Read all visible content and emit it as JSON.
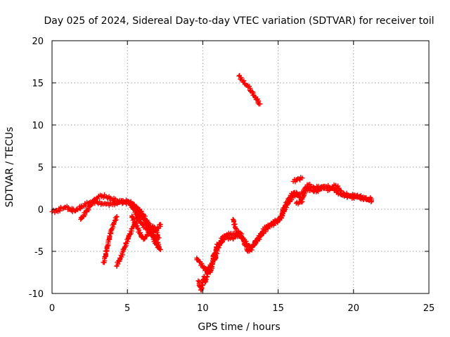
{
  "chart_data": {
    "type": "scatter",
    "title": "Day 025 of 2024, Sidereal Day-to-day VTEC variation (SDTVAR) for receiver toil",
    "xlabel": "GPS time / hours",
    "ylabel": "SDTVAR / TECUs",
    "xlim": [
      0,
      25
    ],
    "ylim": [
      -10,
      20
    ],
    "xticks": [
      0,
      5,
      10,
      15,
      20,
      25
    ],
    "yticks": [
      -10,
      -5,
      0,
      5,
      10,
      15,
      20
    ],
    "xtick_labels": [
      "0",
      "5",
      "10",
      "15",
      "20",
      "25"
    ],
    "ytick_labels": [
      "-10",
      "-5",
      "0",
      "5",
      "10",
      "15",
      "20"
    ],
    "grid": true,
    "marker": "plus",
    "color": "#ff0000",
    "series": [
      {
        "x": [
          0.0,
          0.3,
          0.6,
          0.9,
          1.2,
          1.5,
          1.8,
          2.1,
          2.4,
          2.7,
          3.0,
          3.3,
          3.6,
          3.9,
          4.2,
          4.5,
          4.8,
          5.0,
          5.2,
          5.4,
          5.6,
          5.8,
          6.0,
          6.2,
          6.4,
          6.6,
          6.8,
          7.0,
          7.2
        ],
        "y": [
          -0.3,
          -0.2,
          0.1,
          0.2,
          0.0,
          -0.2,
          0.1,
          0.4,
          0.7,
          0.9,
          0.8,
          0.7,
          0.6,
          0.6,
          0.7,
          0.8,
          0.9,
          1.0,
          0.8,
          0.6,
          0.3,
          -0.1,
          -0.6,
          -1.2,
          -1.8,
          -2.5,
          -3.2,
          -4.0,
          -4.8
        ]
      },
      {
        "x": [
          1.9,
          2.1,
          2.3,
          2.5,
          2.7,
          2.9,
          3.1,
          3.3,
          3.5,
          3.7,
          4.0,
          4.3,
          4.6,
          4.9,
          5.1,
          5.3,
          5.5,
          5.7,
          5.9,
          6.1,
          6.3,
          6.5,
          6.7,
          6.9,
          7.1
        ],
        "y": [
          -1.2,
          -0.8,
          -0.3,
          0.3,
          0.8,
          1.2,
          1.5,
          1.6,
          1.5,
          1.4,
          1.2,
          1.0,
          0.9,
          0.8,
          0.7,
          0.5,
          0.2,
          -0.2,
          -0.7,
          -1.3,
          -1.9,
          -2.6,
          -3.3,
          -4.0,
          -4.6
        ]
      },
      {
        "x": [
          5.0,
          5.2,
          5.4,
          5.6,
          5.8,
          6.0,
          6.2,
          6.4,
          6.6,
          6.8,
          7.0,
          7.2
        ],
        "y": [
          1.0,
          0.5,
          0.0,
          -0.6,
          -1.2,
          -1.8,
          -2.2,
          -2.5,
          -2.6,
          -2.5,
          -2.2,
          -1.8
        ]
      },
      {
        "x": [
          5.3,
          5.5,
          5.7,
          5.9,
          6.1,
          6.3,
          6.5,
          6.7,
          6.9,
          7.1
        ],
        "y": [
          -0.8,
          -1.5,
          -2.3,
          -3.2,
          -3.5,
          -3.0,
          -2.4,
          -2.0,
          -2.6,
          -3.4
        ]
      },
      {
        "x": [
          3.4,
          3.5,
          3.6,
          3.7,
          3.8,
          3.9,
          4.0,
          4.1,
          4.2,
          4.3
        ],
        "y": [
          -6.3,
          -5.7,
          -5.0,
          -4.3,
          -3.6,
          -2.9,
          -2.3,
          -1.8,
          -1.3,
          -0.9
        ]
      },
      {
        "x": [
          4.3,
          4.5,
          4.7,
          4.9,
          5.1,
          5.3,
          5.5,
          5.7,
          5.9
        ],
        "y": [
          -6.7,
          -6.0,
          -5.0,
          -4.0,
          -3.1,
          -2.3,
          -1.6,
          -0.9,
          -0.3
        ]
      },
      {
        "x": [
          9.7,
          9.8,
          9.9,
          10.0,
          10.1,
          10.2,
          10.3,
          10.4,
          10.5,
          10.6,
          10.7,
          10.8,
          10.9,
          11.0,
          11.1,
          11.2,
          11.3,
          11.4,
          11.6,
          11.8,
          12.0,
          12.2,
          12.4,
          12.6,
          12.8,
          13.0,
          13.2,
          13.4,
          13.6,
          13.8,
          14.0,
          14.2,
          14.4,
          14.6,
          14.8,
          15.0,
          15.2,
          15.4,
          15.6,
          15.8,
          16.0,
          16.2,
          16.4,
          16.6,
          16.8,
          17.0,
          17.2,
          17.4,
          17.6,
          17.8,
          18.0,
          18.2,
          18.4,
          18.6,
          18.8,
          19.0,
          19.2,
          19.4,
          19.6,
          19.8,
          20.0,
          20.2,
          20.4,
          20.6,
          20.8,
          21.0,
          21.2
        ],
        "y": [
          -8.5,
          -9.2,
          -9.6,
          -9.0,
          -8.0,
          -8.6,
          -8.0,
          -7.0,
          -7.5,
          -6.5,
          -5.5,
          -6.0,
          -5.2,
          -4.6,
          -4.3,
          -3.8,
          -3.5,
          -3.3,
          -3.0,
          -3.0,
          -2.9,
          -3.0,
          -3.2,
          -3.4,
          -3.8,
          -4.3,
          -4.6,
          -4.2,
          -3.8,
          -3.3,
          -2.8,
          -2.4,
          -2.0,
          -1.8,
          -1.6,
          -1.4,
          -1.0,
          -0.3,
          0.5,
          1.0,
          1.5,
          1.7,
          1.8,
          1.9,
          2.2,
          2.4,
          2.3,
          2.1,
          2.2,
          2.4,
          2.5,
          2.7,
          2.6,
          2.5,
          2.2,
          1.9,
          1.7,
          1.8,
          1.7,
          1.5,
          1.4,
          1.5,
          1.4,
          1.3,
          1.2,
          1.1,
          1.0
        ]
      },
      {
        "x": [
          9.6,
          9.8,
          10.0,
          10.2,
          10.4,
          10.6,
          10.8,
          11.0,
          11.2,
          11.4,
          11.6,
          11.8,
          12.0,
          12.2,
          12.4,
          12.6,
          12.8,
          13.0,
          13.2,
          13.4,
          13.6,
          13.8,
          14.0,
          14.2,
          14.4,
          14.6,
          14.8,
          15.0,
          15.2,
          15.4,
          15.6,
          15.8,
          16.0,
          16.2,
          16.4,
          16.6,
          16.8,
          17.0,
          17.2,
          17.4,
          17.6,
          17.8,
          18.0,
          18.2,
          18.4,
          18.6,
          18.8,
          19.0,
          19.2,
          19.4,
          19.6,
          19.8,
          20.0,
          20.2,
          20.4,
          20.6,
          20.8,
          21.0,
          21.2
        ],
        "y": [
          -5.8,
          -6.3,
          -6.8,
          -7.3,
          -6.9,
          -6.5,
          -5.2,
          -4.2,
          -4.0,
          -3.6,
          -3.3,
          -3.4,
          -3.5,
          -3.2,
          -2.7,
          -3.3,
          -4.3,
          -5.0,
          -4.8,
          -4.2,
          -3.7,
          -3.2,
          -2.6,
          -2.1,
          -1.9,
          -1.7,
          -1.4,
          -1.2,
          -0.8,
          0.2,
          0.9,
          1.4,
          1.9,
          2.0,
          1.4,
          1.2,
          2.6,
          2.9,
          2.7,
          2.5,
          2.6,
          2.6,
          2.7,
          2.5,
          2.3,
          2.6,
          2.8,
          2.5,
          1.9,
          1.6,
          1.5,
          1.6,
          1.6,
          1.6,
          1.5,
          1.4,
          1.3,
          1.2,
          1.2
        ]
      },
      {
        "x": [
          12.0,
          12.1,
          12.2,
          12.3,
          12.4
        ],
        "y": [
          -1.2,
          -1.8,
          -2.3,
          -2.8,
          -3.2
        ]
      },
      {
        "x": [
          16.2,
          16.4,
          16.6
        ],
        "y": [
          0.7,
          0.8,
          0.9
        ]
      },
      {
        "x": [
          16.0,
          16.2,
          16.4,
          16.6
        ],
        "y": [
          3.3,
          3.5,
          3.6,
          3.7
        ]
      },
      {
        "x": [
          12.4,
          12.6,
          12.8,
          13.0,
          13.2,
          13.4,
          13.6,
          13.8
        ],
        "y": [
          15.8,
          15.3,
          14.9,
          14.5,
          14.0,
          13.5,
          13.0,
          12.5
        ]
      }
    ]
  }
}
